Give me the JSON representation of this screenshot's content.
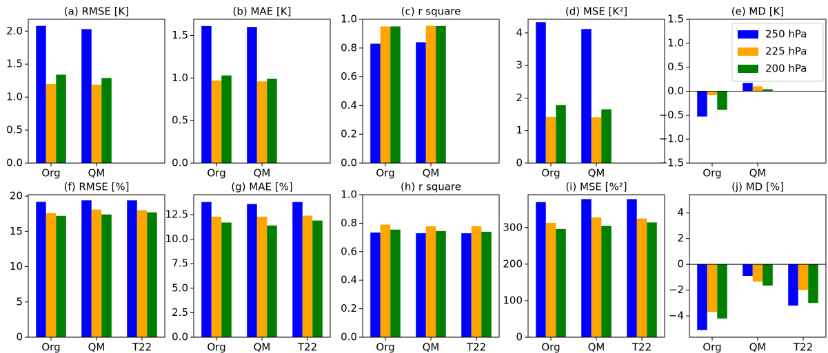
{
  "chart_data": [
    {
      "type": "bar",
      "title": "(a) RMSE [K]",
      "categories": [
        "Org",
        "QM",
        null
      ],
      "series": [
        {
          "color": "#0000ff",
          "values": [
            2.08,
            2.03,
            null
          ]
        },
        {
          "color": "#ffa500",
          "values": [
            1.2,
            1.19,
            null
          ]
        },
        {
          "color": "#008000",
          "values": [
            1.34,
            1.29,
            null
          ]
        }
      ],
      "ylim": [
        0,
        2.18
      ],
      "yticks": [
        {
          "value": 0,
          "label": "0.0"
        },
        {
          "value": 0.5,
          "label": "0.5"
        },
        {
          "value": 1.0,
          "label": "1.0"
        },
        {
          "value": 1.5,
          "label": "1.5"
        },
        {
          "value": 2.0,
          "label": "2.0"
        }
      ]
    },
    {
      "type": "bar",
      "title": "(b) MAE [K]",
      "categories": [
        "Org",
        "QM",
        null
      ],
      "series": [
        {
          "color": "#0000ff",
          "values": [
            1.61,
            1.6,
            null
          ]
        },
        {
          "color": "#ffa500",
          "values": [
            0.97,
            0.96,
            null
          ]
        },
        {
          "color": "#008000",
          "values": [
            1.03,
            0.99,
            null
          ]
        }
      ],
      "ylim": [
        0,
        1.69
      ],
      "yticks": [
        {
          "value": 0,
          "label": "0.0"
        },
        {
          "value": 0.5,
          "label": "0.5"
        },
        {
          "value": 1.0,
          "label": "1.0"
        },
        {
          "value": 1.5,
          "label": "1.5"
        }
      ]
    },
    {
      "type": "bar",
      "title": "(c) r square",
      "categories": [
        "Org",
        "QM",
        null
      ],
      "series": [
        {
          "color": "#0000ff",
          "values": [
            0.83,
            0.84,
            null
          ]
        },
        {
          "color": "#ffa500",
          "values": [
            0.95,
            0.955,
            null
          ]
        },
        {
          "color": "#008000",
          "values": [
            0.95,
            0.953,
            null
          ]
        }
      ],
      "ylim": [
        0,
        1.0
      ],
      "yticks": [
        {
          "value": 0,
          "label": "0.0"
        },
        {
          "value": 0.2,
          "label": "0.2"
        },
        {
          "value": 0.4,
          "label": "0.4"
        },
        {
          "value": 0.6,
          "label": "0.6"
        },
        {
          "value": 0.8,
          "label": "0.8"
        },
        {
          "value": 1.0,
          "label": "1.0"
        }
      ]
    },
    {
      "type": "bar",
      "title": "(d) MSE [K²]",
      "categories": [
        "Org",
        "QM",
        null
      ],
      "series": [
        {
          "color": "#0000ff",
          "values": [
            4.33,
            4.12,
            null
          ]
        },
        {
          "color": "#ffa500",
          "values": [
            1.42,
            1.41,
            null
          ]
        },
        {
          "color": "#008000",
          "values": [
            1.78,
            1.65,
            null
          ]
        }
      ],
      "ylim": [
        0,
        4.42
      ],
      "yticks": [
        0,
        1,
        2,
        3,
        4
      ]
    },
    {
      "type": "bar",
      "title": "(e) MD [K]",
      "categories": [
        "Org",
        "QM",
        null
      ],
      "legend": "upper right",
      "series": [
        {
          "name": "250 hPa",
          "color": "#0000ff",
          "values": [
            -0.53,
            0.17,
            null
          ]
        },
        {
          "name": "225 hPa",
          "color": "#ffa500",
          "values": [
            -0.08,
            0.1,
            null
          ]
        },
        {
          "name": "200 hPa",
          "color": "#008000",
          "values": [
            -0.39,
            0.04,
            null
          ]
        }
      ],
      "ylim": [
        -1.5,
        1.5
      ],
      "yticks": [
        {
          "value": -1.5,
          "label": "−1.5"
        },
        {
          "value": -1.0,
          "label": "−1.0"
        },
        {
          "value": -0.5,
          "label": "−0.5"
        },
        {
          "value": 0,
          "label": "0.0"
        },
        {
          "value": 0.5,
          "label": "0.5"
        },
        {
          "value": 1.0,
          "label": "1.0"
        },
        {
          "value": 1.5,
          "label": "1.5"
        }
      ]
    },
    {
      "type": "bar",
      "title": "(f) RMSE [%]",
      "categories": [
        "Org",
        "QM",
        "T22"
      ],
      "series": [
        {
          "color": "#0000ff",
          "values": [
            19.2,
            19.4,
            19.4
          ]
        },
        {
          "color": "#ffa500",
          "values": [
            17.6,
            18.1,
            18.0
          ]
        },
        {
          "color": "#008000",
          "values": [
            17.2,
            17.4,
            17.7
          ]
        }
      ],
      "ylim": [
        0,
        20.2
      ],
      "yticks": [
        0,
        5,
        10,
        15,
        20
      ]
    },
    {
      "type": "bar",
      "title": "(g) MAE [%]",
      "categories": [
        "Org",
        "QM",
        "T22"
      ],
      "series": [
        {
          "color": "#0000ff",
          "values": [
            13.8,
            13.6,
            13.8
          ]
        },
        {
          "color": "#ffa500",
          "values": [
            12.3,
            12.3,
            12.4
          ]
        },
        {
          "color": "#008000",
          "values": [
            11.7,
            11.4,
            11.9
          ]
        }
      ],
      "ylim": [
        0,
        14.54
      ],
      "yticks": [
        {
          "value": 0,
          "label": "0.0"
        },
        {
          "value": 2.5,
          "label": "2.5"
        },
        {
          "value": 5.0,
          "label": "5.0"
        },
        {
          "value": 7.5,
          "label": "7.5"
        },
        {
          "value": 10.0,
          "label": "10.0"
        },
        {
          "value": 12.5,
          "label": "12.5"
        }
      ]
    },
    {
      "type": "bar",
      "title": "(h) r square",
      "categories": [
        "Org",
        "QM",
        "T22"
      ],
      "series": [
        {
          "color": "#0000ff",
          "values": [
            0.735,
            0.73,
            0.73
          ]
        },
        {
          "color": "#ffa500",
          "values": [
            0.79,
            0.78,
            0.78
          ]
        },
        {
          "color": "#008000",
          "values": [
            0.755,
            0.745,
            0.74
          ]
        }
      ],
      "ylim": [
        0,
        1.0
      ],
      "yticks": [
        {
          "value": 0,
          "label": "0.0"
        },
        {
          "value": 0.2,
          "label": "0.2"
        },
        {
          "value": 0.4,
          "label": "0.4"
        },
        {
          "value": 0.6,
          "label": "0.6"
        },
        {
          "value": 0.8,
          "label": "0.8"
        },
        {
          "value": 1.0,
          "label": "1.0"
        }
      ]
    },
    {
      "type": "bar",
      "title": "(i) MSE [%²]",
      "categories": [
        "Org",
        "QM",
        "T22"
      ],
      "series": [
        {
          "color": "#0000ff",
          "values": [
            370,
            378,
            378
          ]
        },
        {
          "color": "#ffa500",
          "values": [
            313,
            328,
            325
          ]
        },
        {
          "color": "#008000",
          "values": [
            296,
            305,
            314
          ]
        }
      ],
      "ylim": [
        0,
        390
      ],
      "yticks": [
        0,
        100,
        200,
        300
      ]
    },
    {
      "type": "bar",
      "title": "(j) MD [%]",
      "categories": [
        "Org",
        "QM",
        "T22"
      ],
      "series": [
        {
          "color": "#0000ff",
          "values": [
            -5.1,
            -0.9,
            -3.2
          ]
        },
        {
          "color": "#ffa500",
          "values": [
            -3.7,
            -1.35,
            -2.0
          ]
        },
        {
          "color": "#008000",
          "values": [
            -4.2,
            -1.65,
            -3.0
          ]
        }
      ],
      "ylim": [
        -5.65,
        5.4
      ],
      "yticks": [
        {
          "value": -4,
          "label": "−4"
        },
        {
          "value": -2,
          "label": "−2"
        },
        0,
        2,
        4
      ]
    }
  ]
}
